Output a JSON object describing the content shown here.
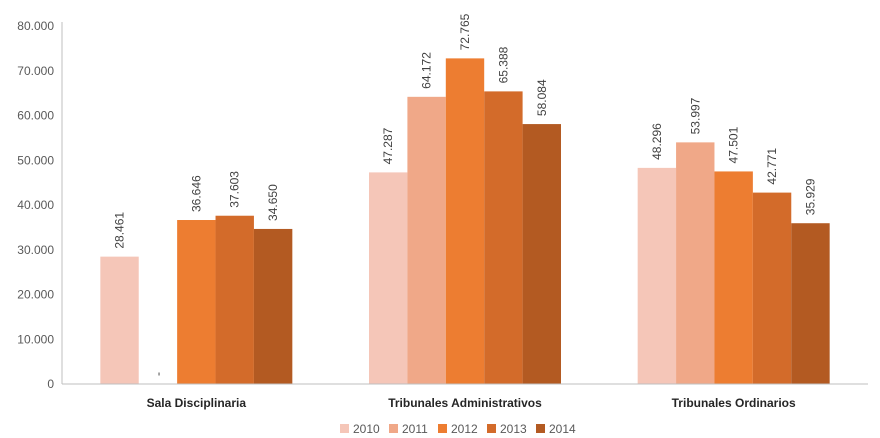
{
  "chart_data": {
    "type": "bar",
    "categories": [
      "Sala Disciplinaria",
      "Tribunales Administrativos",
      "Tribunales Ordinarios"
    ],
    "series": [
      {
        "name": "2010",
        "color": "#F5C6B8",
        "values": [
          28461,
          47287,
          48296
        ],
        "labels": [
          "28.461",
          "47.287",
          "48.296"
        ]
      },
      {
        "name": "2011",
        "color": "#F0A888",
        "values": [
          0,
          64172,
          53997
        ],
        "labels": [
          "-",
          "64.172",
          "53.997"
        ]
      },
      {
        "name": "2012",
        "color": "#ED7D31",
        "values": [
          36646,
          72765,
          47501
        ],
        "labels": [
          "36.646",
          "72.765",
          "47.501"
        ]
      },
      {
        "name": "2013",
        "color": "#D36B2A",
        "values": [
          37603,
          65388,
          42771
        ],
        "labels": [
          "37.603",
          "65.388",
          "42.771"
        ]
      },
      {
        "name": "2014",
        "color": "#B35A22",
        "values": [
          34650,
          58084,
          35929
        ],
        "labels": [
          "34.650",
          "58.084",
          "35.929"
        ]
      }
    ],
    "ylim": [
      0,
      80000
    ],
    "yticks": [
      0,
      10000,
      20000,
      30000,
      40000,
      50000,
      60000,
      70000,
      80000
    ],
    "ytick_labels": [
      "0",
      "10.000",
      "20.000",
      "30.000",
      "40.000",
      "50.000",
      "60.000",
      "70.000",
      "80.000"
    ],
    "legend_position": "bottom",
    "grid": false,
    "title": "",
    "xlabel": "",
    "ylabel": ""
  }
}
